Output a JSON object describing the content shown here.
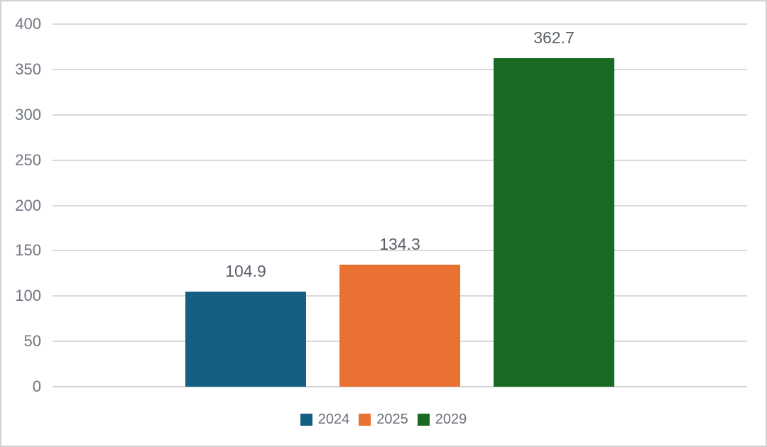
{
  "chart_data": {
    "type": "bar",
    "categories": [
      ""
    ],
    "series": [
      {
        "name": "2024",
        "values": [
          104.9
        ],
        "color": "#156082",
        "label": "104.9"
      },
      {
        "name": "2025",
        "values": [
          134.3
        ],
        "color": "#E97132",
        "label": "134.3"
      },
      {
        "name": "2029",
        "values": [
          362.7
        ],
        "color": "#196B24",
        "label": "362.7"
      }
    ],
    "title": "",
    "xlabel": "",
    "ylabel": "",
    "ylim": [
      0,
      400
    ],
    "yticks": [
      0,
      50,
      100,
      150,
      200,
      250,
      300,
      350,
      400
    ],
    "grid": true,
    "legend_position": "bottom",
    "colors": {
      "gridline": "#d9d9d9",
      "axis_line": "#d0d0d0",
      "tick_text": "#717680",
      "data_label_text": "#5b6069",
      "legend_text": "#6b707a",
      "border": "#d2d2d2",
      "background": "#ffffff"
    }
  }
}
